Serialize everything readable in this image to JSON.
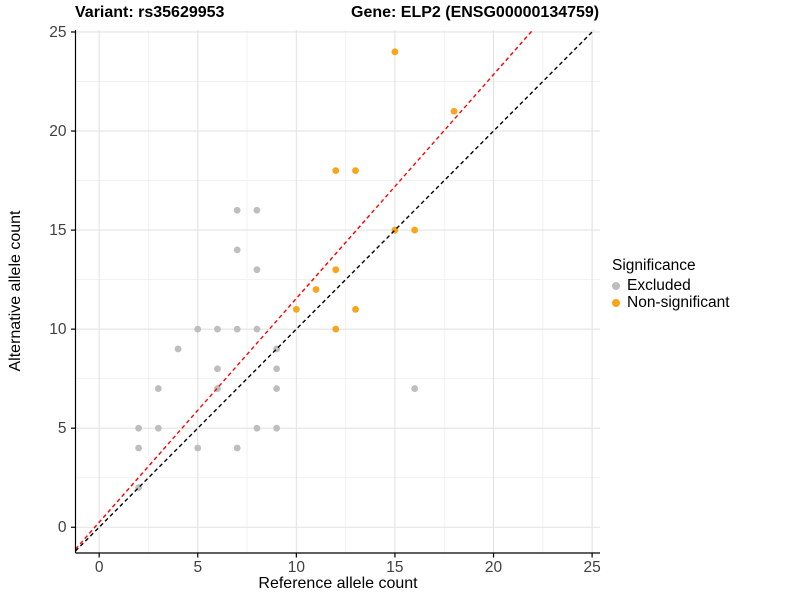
{
  "titles": {
    "variant": "Variant: rs35629953",
    "gene": "Gene: ELP2 (ENSG00000134759)"
  },
  "axes": {
    "x_label": "Reference allele count",
    "y_label": "Alternative allele count"
  },
  "legend": {
    "title": "Significance",
    "items": [
      {
        "label": "Excluded"
      },
      {
        "label": "Non-significant"
      }
    ]
  },
  "chart_data": {
    "type": "scatter",
    "title_left": "Variant: rs35629953",
    "title_right": "Gene: ELP2 (ENSG00000134759)",
    "xlabel": "Reference allele count",
    "ylabel": "Alternative allele count",
    "xlim": [
      -1.2,
      25.4
    ],
    "ylim": [
      -1.3,
      25.1
    ],
    "x_ticks": [
      0,
      5,
      10,
      15,
      20,
      25
    ],
    "y_ticks": [
      0,
      5,
      10,
      15,
      20,
      25
    ],
    "minor_ticks": [
      2.5,
      7.5,
      12.5,
      17.5,
      22.5
    ],
    "grid": true,
    "legend_position": "right",
    "legend_title": "Significance",
    "series": [
      {
        "name": "Excluded",
        "color": "#BEBEBE",
        "points": [
          [
            2,
            2
          ],
          [
            2,
            4
          ],
          [
            2,
            5
          ],
          [
            3,
            5
          ],
          [
            3,
            7
          ],
          [
            4,
            9
          ],
          [
            5,
            4
          ],
          [
            5,
            10
          ],
          [
            6,
            7
          ],
          [
            6,
            8
          ],
          [
            6,
            10
          ],
          [
            7,
            4
          ],
          [
            7,
            10
          ],
          [
            7,
            14
          ],
          [
            7,
            16
          ],
          [
            8,
            5
          ],
          [
            8,
            10
          ],
          [
            8,
            13
          ],
          [
            8,
            16
          ],
          [
            9,
            5
          ],
          [
            9,
            7
          ],
          [
            9,
            8
          ],
          [
            9,
            9
          ],
          [
            16,
            7
          ]
        ]
      },
      {
        "name": "Non-significant",
        "color": "#FAA519",
        "points": [
          [
            10,
            11
          ],
          [
            11,
            12
          ],
          [
            12,
            10
          ],
          [
            12,
            13
          ],
          [
            12,
            18
          ],
          [
            13,
            11
          ],
          [
            13,
            18
          ],
          [
            15,
            15
          ],
          [
            15,
            24
          ],
          [
            16,
            15
          ],
          [
            18,
            21
          ]
        ]
      }
    ],
    "lines": [
      {
        "name": "identity-line",
        "slope": 1,
        "intercept": 0,
        "color": "#000000",
        "dashed": true
      },
      {
        "name": "fitted-ratio-line",
        "slope": 1.13,
        "intercept": 0.25,
        "color": "#FF0000",
        "dashed": true
      }
    ]
  }
}
